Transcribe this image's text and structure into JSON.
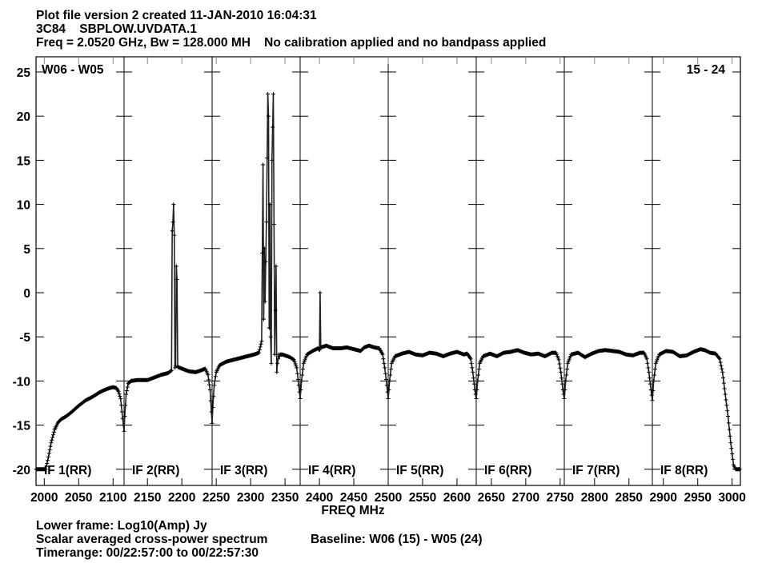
{
  "header": {
    "line1": "Plot file version 2  created 11-JAN-2010 16:04:31",
    "line2": "3C84    SBPLOW.UVDATA.1",
    "line3": "Freq = 2.0520 GHz, Bw = 128.000 MH    No calibration applied and no bandpass applied"
  },
  "footer": {
    "line1": "Lower frame: Log10(Amp) Jy",
    "line2a": "Scalar averaged cross-power spectrum",
    "line2b": "Baseline: W06 (15) - W05 (24)",
    "line3": "Timerange: 00/22:57:00 to 00/22:57:30"
  },
  "chart_data": {
    "type": "line",
    "title": "",
    "xlabel": "FREQ MHz",
    "ylabel": "",
    "corner_left": "W06 - W05",
    "corner_right": "15 - 24",
    "xlim": [
      1988,
      3012
    ],
    "ylim": [
      -21.5,
      26.5
    ],
    "xticks": [
      2000,
      2050,
      2100,
      2150,
      2200,
      2250,
      2300,
      2350,
      2400,
      2450,
      2500,
      2550,
      2600,
      2650,
      2700,
      2750,
      2800,
      2850,
      2900,
      2950,
      3000
    ],
    "xtick_labels": [
      "2000",
      "2050",
      "2100",
      "2150",
      "2200",
      "2250",
      "2300",
      "2350",
      "2400",
      "2450",
      "2500",
      "2550",
      "2600",
      "2650",
      "2700",
      "2750",
      "2800",
      "2850",
      "2900",
      "2950",
      "3000"
    ],
    "yticks": [
      -20,
      -15,
      -10,
      -5,
      0,
      5,
      10,
      15,
      20,
      25
    ],
    "ytick_labels": [
      "-20",
      "-15",
      "-10",
      "-5",
      "0",
      "5",
      "10",
      "15",
      "20",
      "25"
    ],
    "grid": false,
    "marker": "plus",
    "line_color": "#000000",
    "panels": [
      {
        "label": "IF 1(RR)",
        "range": [
          1988,
          2116
        ],
        "x": [
          1988,
          1995,
          2002,
          2005,
          2010,
          2015,
          2020,
          2025,
          2032,
          2040,
          2050,
          2060,
          2070,
          2080,
          2088,
          2095,
          2100,
          2105,
          2108,
          2111,
          2113,
          2115,
          2116
        ],
        "y": [
          -20,
          -20,
          -20,
          -19,
          -17,
          -15.5,
          -14.7,
          -14.3,
          -14,
          -13.5,
          -12.8,
          -12.2,
          -11.8,
          -11.3,
          -11,
          -10.8,
          -10.7,
          -10.8,
          -11.2,
          -12,
          -13.5,
          -15,
          -15.7
        ]
      },
      {
        "label": "IF 2(RR)",
        "range": [
          2116,
          2244
        ],
        "x": [
          2116,
          2117,
          2119,
          2122,
          2126,
          2135,
          2150,
          2160,
          2170,
          2180,
          2185,
          2186,
          2187,
          2188,
          2189,
          2190,
          2191,
          2192,
          2193,
          2194,
          2200,
          2210,
          2220,
          2228,
          2234,
          2238,
          2241,
          2243,
          2244
        ],
        "y": [
          -15.7,
          -14,
          -11.5,
          -10.3,
          -10,
          -9.9,
          -9.9,
          -9.6,
          -9.3,
          -9.1,
          -8.8,
          7,
          8,
          10,
          6.5,
          -8.5,
          -8.3,
          3,
          1.5,
          -8.4,
          -8.6,
          -8.9,
          -9,
          -8.8,
          -8.6,
          -9.3,
          -11,
          -13.5,
          -14.8
        ]
      },
      {
        "label": "IF 3(RR)",
        "range": [
          2244,
          2372
        ],
        "x": [
          2244,
          2245,
          2247,
          2250,
          2255,
          2265,
          2280,
          2295,
          2305,
          2312,
          2316,
          2318,
          2319,
          2320,
          2321,
          2323,
          2325,
          2326,
          2327,
          2328,
          2329,
          2330,
          2331,
          2333,
          2335,
          2337,
          2338,
          2339,
          2341,
          2342,
          2343,
          2346,
          2350,
          2357,
          2363,
          2367,
          2370,
          2372
        ],
        "y": [
          -14.8,
          -13,
          -10.5,
          -9,
          -8.2,
          -7.8,
          -7.5,
          -7.2,
          -7,
          -6.8,
          -5.5,
          14.5,
          -3,
          5,
          -1,
          8,
          22.5,
          20,
          -4,
          10,
          -5,
          -8,
          15,
          22.5,
          -7,
          3,
          -9,
          -8,
          -7,
          -7.2,
          -7,
          -7,
          -7.1,
          -7.3,
          -7.6,
          -8.5,
          -10.5,
          -12
        ]
      },
      {
        "label": "IF 4(RR)",
        "range": [
          2372,
          2500
        ],
        "x": [
          2372,
          2374,
          2377,
          2382,
          2390,
          2398,
          2400,
          2401,
          2402,
          2410,
          2420,
          2430,
          2440,
          2450,
          2460,
          2465,
          2472,
          2480,
          2487,
          2492,
          2495,
          2498,
          2500
        ],
        "y": [
          -12,
          -10,
          -8,
          -7,
          -6.6,
          -6.3,
          -6.5,
          0,
          -6.2,
          -6,
          -6.3,
          -6.3,
          -6.2,
          -6.4,
          -6.6,
          -6.2,
          -6,
          -6.2,
          -6.3,
          -7,
          -8.5,
          -10.5,
          -12
        ]
      },
      {
        "label": "IF 5(RR)",
        "range": [
          2500,
          2628
        ],
        "x": [
          2500,
          2502,
          2505,
          2510,
          2520,
          2530,
          2540,
          2550,
          2560,
          2570,
          2580,
          2590,
          2600,
          2610,
          2615,
          2620,
          2623,
          2626,
          2628
        ],
        "y": [
          -12,
          -10,
          -8,
          -7.2,
          -6.9,
          -6.7,
          -7,
          -7.1,
          -6.8,
          -6.9,
          -7.2,
          -6.9,
          -6.7,
          -7,
          -6.9,
          -7.5,
          -9,
          -11,
          -12
        ]
      },
      {
        "label": "IF 6(RR)",
        "range": [
          2628,
          2756
        ],
        "x": [
          2628,
          2630,
          2633,
          2638,
          2648,
          2658,
          2668,
          2678,
          2688,
          2698,
          2708,
          2718,
          2728,
          2738,
          2744,
          2748,
          2751,
          2754,
          2756
        ],
        "y": [
          -12,
          -10,
          -8,
          -7.2,
          -6.9,
          -7.2,
          -6.8,
          -6.7,
          -6.5,
          -6.8,
          -7,
          -6.9,
          -7.2,
          -6.8,
          -6.8,
          -7.6,
          -9,
          -11,
          -12
        ]
      },
      {
        "label": "IF 7(RR)",
        "range": [
          2756,
          2884
        ],
        "x": [
          2756,
          2758,
          2761,
          2766,
          2776,
          2786,
          2796,
          2806,
          2816,
          2826,
          2836,
          2846,
          2856,
          2866,
          2872,
          2876,
          2879,
          2882,
          2884
        ],
        "y": [
          -12,
          -10,
          -8,
          -7,
          -6.8,
          -7.3,
          -6.9,
          -6.6,
          -6.5,
          -6.6,
          -6.7,
          -7,
          -7.1,
          -6.8,
          -6.8,
          -7.5,
          -9,
          -11,
          -12.2
        ]
      },
      {
        "label": "IF 8(RR)",
        "range": [
          2884,
          3012
        ],
        "x": [
          2884,
          2886,
          2889,
          2894,
          2904,
          2914,
          2924,
          2934,
          2944,
          2954,
          2960,
          2968,
          2976,
          2982,
          2986,
          2990,
          2994,
          2998,
          3002,
          3005,
          3008,
          3012
        ],
        "y": [
          -12.2,
          -10,
          -8,
          -7,
          -6.6,
          -6.7,
          -7.2,
          -7.1,
          -6.7,
          -6.4,
          -6.5,
          -6.8,
          -6.9,
          -7.5,
          -9,
          -11.5,
          -14,
          -17,
          -19.5,
          -20,
          -20,
          -20
        ]
      }
    ]
  }
}
